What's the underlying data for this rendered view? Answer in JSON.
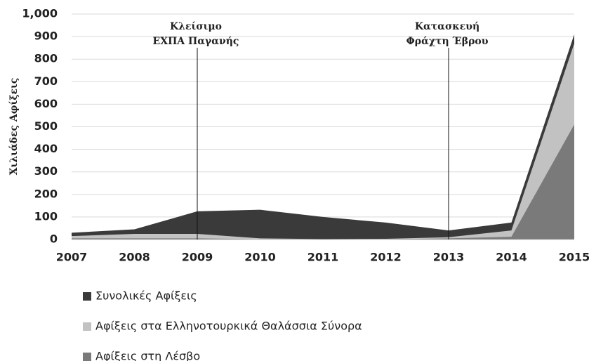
{
  "chart_data": {
    "type": "area",
    "ylabel": "Χιλιάδες Αφίξεις",
    "x": [
      2007,
      2008,
      2009,
      2010,
      2011,
      2012,
      2013,
      2014,
      2015
    ],
    "xlim": [
      2007,
      2015
    ],
    "xticks": [
      2007,
      2008,
      2009,
      2010,
      2011,
      2012,
      2013,
      2014,
      2015
    ],
    "ylim": [
      0,
      1000
    ],
    "yticks": [
      0,
      100,
      200,
      300,
      400,
      500,
      600,
      700,
      800,
      900,
      {
        "value": 1000,
        "label": "1,000"
      }
    ],
    "grid": true,
    "series": [
      {
        "name": "Συνολικές Αφίξεις",
        "color": "#3a3a3a",
        "values": [
          30,
          45,
          125,
          132,
          100,
          75,
          40,
          75,
          910
        ]
      },
      {
        "name": "Αφίξεις στα Ελληνοτουρκικά Θαλάσσια Σύνορα",
        "color": "#c2c2c2",
        "values": [
          15,
          25,
          25,
          5,
          2,
          3,
          10,
          40,
          870
        ]
      },
      {
        "name": "Αφίξεις στη Λέσβο",
        "color": "#7a7a7a",
        "values": [
          5,
          5,
          5,
          1,
          1,
          1,
          5,
          12,
          510
        ]
      }
    ],
    "annotations": [
      {
        "x": 2009,
        "lines": [
          "Κλείσιμο",
          "ΕΧΠΑ Παγανής"
        ]
      },
      {
        "x": 2013,
        "lines": [
          "Κατασκευή",
          "Φράχτη Έβρου"
        ]
      }
    ]
  }
}
